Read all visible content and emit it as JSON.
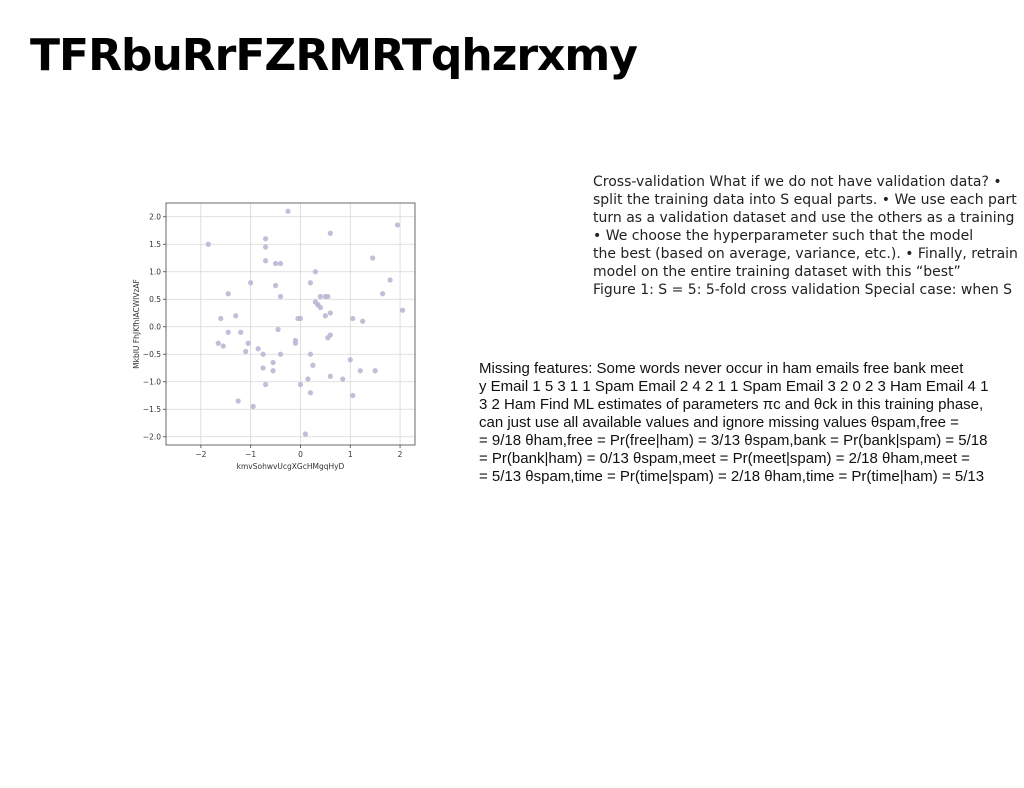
{
  "slide": {
    "title": "TFRbuRrFZRMRTqhzrxmy"
  },
  "cross_validation_text": {
    "lines": [
      "Cross-validation What if we do not have validation data? •",
      "split the training data into S equal parts. • We use each part",
      "turn as a validation dataset and use the others as a training",
      "• We choose the hyperparameter such that the model",
      "the best (based on average, variance, etc.). • Finally, retrain",
      "model on the entire training dataset with this “best”",
      "Figure 1: S = 5: 5-fold cross validation Special case: when S"
    ]
  },
  "naive_bayes_text": {
    "lines": [
      "Missing features: Some words never occur in ham emails free bank meet",
      "y Email 1 5 3 1 1 Spam Email 2 4 2 1 1 Spam Email 3 2 0 2 3 Ham Email 4 1",
      "3 2 Ham Find ML estimates of parameters πc and θck in this training phase,",
      "can just use all available values and ignore missing values θspam,free =",
      "= 9/18 θham,free = Pr(free|ham) = 3/13 θspam,bank = Pr(bank|spam) = 5/18",
      "= Pr(bank|ham) = 0/13 θspam,meet = Pr(meet|spam) = 2/18 θham,meet =",
      "= 5/13 θspam,time = Pr(time|spam) = 2/18 θham,time = Pr(time|ham) = 5/13"
    ]
  },
  "chart_data": {
    "type": "scatter",
    "title": "",
    "xlabel": "kmvSohwvUcgXGcHMgqHyD",
    "ylabel": "MkbIU FhJKfhlACWIVzAF",
    "xlim": [
      -2.7,
      2.3
    ],
    "ylim": [
      -2.15,
      2.25
    ],
    "xticks": [
      -2,
      -1,
      0,
      1,
      2
    ],
    "yticks": [
      -2.0,
      -1.5,
      -1.0,
      -0.5,
      0.0,
      0.5,
      1.0,
      1.5,
      2.0
    ],
    "xtick_labels": [
      "−2",
      "−1",
      "0",
      "1",
      "2"
    ],
    "ytick_labels": [
      "−2.0",
      "−1.5",
      "−1.0",
      "−0.5",
      "0.0",
      "0.5",
      "1.0",
      "1.5",
      "2.0"
    ],
    "grid": true,
    "point_color": "#b9b7d4",
    "x": [
      -0.25,
      1.95,
      0.6,
      -0.7,
      -1.85,
      1.45,
      -0.7,
      -0.5,
      -0.7,
      -0.4,
      0.3,
      1.8,
      0.2,
      -0.5,
      1.65,
      -1.45,
      0.4,
      0.55,
      0.5,
      -1.0,
      0.3,
      0.35,
      -0.4,
      2.05,
      0.4,
      0.35,
      0.6,
      -1.3,
      1.05,
      1.25,
      -1.6,
      -0.05,
      0.5,
      0.0,
      -0.45,
      -1.45,
      0.6,
      0.55,
      -1.2,
      -0.1,
      -0.1,
      -1.05,
      -1.65,
      -1.55,
      -0.85,
      -1.1,
      -0.75,
      0.2,
      -0.4,
      1.0,
      -0.55,
      0.25,
      -0.75,
      1.2,
      1.5,
      -0.55,
      0.6,
      0.15,
      0.85,
      -0.7,
      0.0,
      0.2,
      1.05,
      -1.25,
      -0.95,
      0.1
    ],
    "y": [
      2.1,
      1.85,
      1.7,
      1.6,
      1.5,
      1.25,
      1.45,
      1.15,
      1.2,
      1.15,
      1.0,
      0.85,
      0.8,
      0.75,
      0.6,
      0.6,
      0.55,
      0.55,
      0.55,
      0.8,
      0.45,
      0.4,
      0.55,
      0.3,
      0.35,
      0.4,
      0.25,
      0.2,
      0.15,
      0.1,
      0.15,
      0.15,
      0.2,
      0.15,
      -0.05,
      -0.1,
      -0.15,
      -0.2,
      -0.1,
      -0.25,
      -0.3,
      -0.3,
      -0.3,
      -0.35,
      -0.4,
      -0.45,
      -0.5,
      -0.5,
      -0.5,
      -0.6,
      -0.65,
      -0.7,
      -0.75,
      -0.8,
      -0.8,
      -0.8,
      -0.9,
      -0.95,
      -0.95,
      -1.05,
      -1.05,
      -1.2,
      -1.25,
      -1.35,
      -1.45,
      -1.95
    ]
  }
}
